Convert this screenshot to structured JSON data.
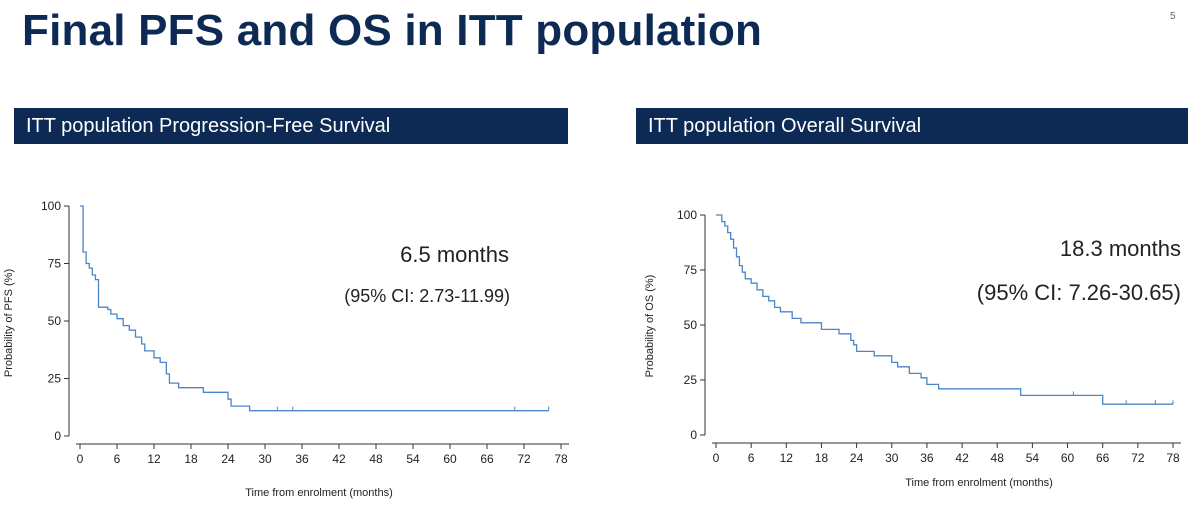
{
  "slide": {
    "title": "Final PFS and OS in ITT population",
    "page_number": "5"
  },
  "colors": {
    "header_bg": "#0d2a55",
    "curve": "#4a86c8",
    "axis": "#333333"
  },
  "chart_data": [
    {
      "type": "line",
      "id": "pfs",
      "title": "ITT population Progression-Free Survival",
      "xlabel": "Time from enrolment (months)",
      "ylabel": "Probability of PFS (%)",
      "xlim": [
        0,
        78
      ],
      "ylim": [
        0,
        100
      ],
      "xticks": [
        0,
        6,
        12,
        18,
        24,
        30,
        36,
        42,
        48,
        54,
        60,
        66,
        72,
        78
      ],
      "yticks": [
        0,
        25,
        50,
        75,
        100
      ],
      "annotation_main": "6.5 months",
      "annotation_sub": "(95% CI: 2.73-11.99)",
      "series": [
        {
          "name": "PFS",
          "step": [
            [
              0,
              100
            ],
            [
              0.5,
              80
            ],
            [
              1,
              75
            ],
            [
              1.5,
              73
            ],
            [
              2,
              70
            ],
            [
              2.5,
              68
            ],
            [
              3,
              56
            ],
            [
              4.5,
              55
            ],
            [
              5,
              53
            ],
            [
              6,
              51
            ],
            [
              7,
              48
            ],
            [
              8,
              46
            ],
            [
              9,
              43
            ],
            [
              10,
              40
            ],
            [
              10.5,
              37
            ],
            [
              12,
              34
            ],
            [
              13,
              32
            ],
            [
              14,
              27
            ],
            [
              14.5,
              23
            ],
            [
              16,
              21
            ],
            [
              20,
              19
            ],
            [
              24,
              16
            ],
            [
              24.5,
              13
            ],
            [
              27.5,
              11
            ],
            [
              76,
              11
            ]
          ],
          "censor": [
            32,
            34.5,
            70.5,
            76
          ]
        }
      ]
    },
    {
      "type": "line",
      "id": "os",
      "title": "ITT population Overall Survival",
      "xlabel": "Time from enrolment (months)",
      "ylabel": "Probability of OS (%)",
      "xlim": [
        0,
        78
      ],
      "ylim": [
        0,
        100
      ],
      "xticks": [
        0,
        6,
        12,
        18,
        24,
        30,
        36,
        42,
        48,
        54,
        60,
        66,
        72,
        78
      ],
      "yticks": [
        0,
        25,
        50,
        75,
        100
      ],
      "annotation_main": "18.3 months",
      "annotation_sub": "(95% CI: 7.26-30.65)",
      "series": [
        {
          "name": "OS",
          "step": [
            [
              0,
              100
            ],
            [
              1,
              97
            ],
            [
              1.5,
              95
            ],
            [
              2,
              92
            ],
            [
              2.5,
              89
            ],
            [
              3,
              85
            ],
            [
              3.5,
              81
            ],
            [
              4,
              77
            ],
            [
              4.5,
              74
            ],
            [
              5,
              71
            ],
            [
              6,
              69
            ],
            [
              7,
              66
            ],
            [
              8,
              63
            ],
            [
              9,
              61
            ],
            [
              10,
              58
            ],
            [
              11,
              56
            ],
            [
              13,
              53
            ],
            [
              14.5,
              51
            ],
            [
              18,
              48
            ],
            [
              21,
              46
            ],
            [
              23,
              43
            ],
            [
              23.5,
              41
            ],
            [
              24,
              38
            ],
            [
              27,
              36
            ],
            [
              30,
              33
            ],
            [
              31,
              31
            ],
            [
              33,
              28
            ],
            [
              35,
              26
            ],
            [
              36,
              23
            ],
            [
              38,
              21
            ],
            [
              52,
              18
            ],
            [
              66,
              14
            ],
            [
              78,
              14
            ]
          ],
          "censor": [
            31,
            61,
            70,
            75,
            78
          ]
        }
      ]
    }
  ]
}
